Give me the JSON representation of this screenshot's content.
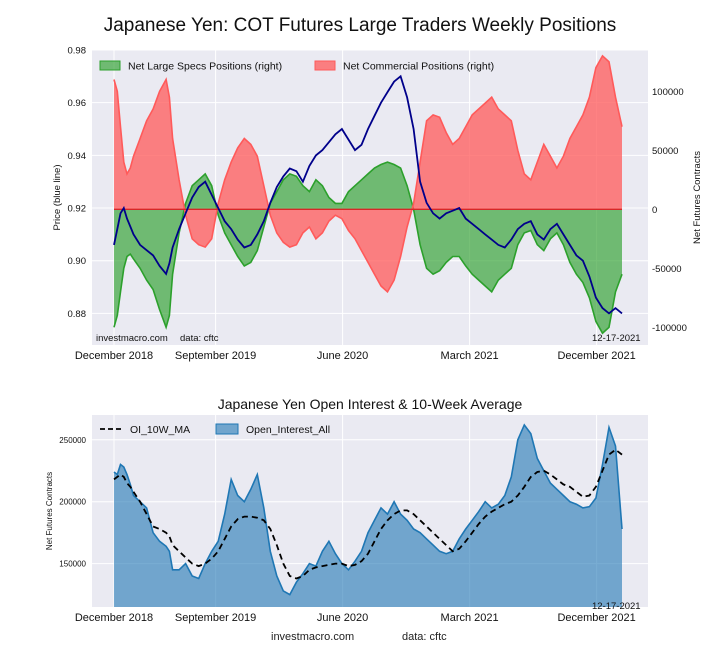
{
  "chart_data": [
    {
      "type": "area",
      "title": "Japanese Yen: COT Futures Large Traders Weekly Positions",
      "ylabel_left": "Price (blue line)",
      "ylabel_right": "Net Futures Contracts",
      "x_tick_labels": [
        "December 2018",
        "September 2019",
        "June 2020",
        "March 2021",
        "December 2021"
      ],
      "x_tick_positions": [
        0,
        0.2,
        0.45,
        0.7,
        0.95
      ],
      "ylim_left": [
        0.868,
        0.98
      ],
      "y_ticks_left": [
        0.88,
        0.9,
        0.92,
        0.94,
        0.96,
        0.98
      ],
      "y_tick_labels_left": [
        "0.88",
        "0.90",
        "0.92",
        "0.94",
        "0.96",
        "0.98"
      ],
      "ylim_right": [
        -115000,
        135000
      ],
      "y_ticks_right": [
        -100000,
        -50000,
        0,
        50000,
        100000
      ],
      "y_tick_labels_right": [
        "-100000",
        "-50000",
        "0",
        "50000",
        "100000"
      ],
      "grid": true,
      "legend_position": "top-left",
      "source_label": "investmacro.com",
      "data_label": "data: cftc",
      "date_label": "12-17-2021",
      "series": [
        {
          "name": "Net Large Specs Positions (right)",
          "kind": "area",
          "color": "#2ca02c",
          "x": [
            0,
            1,
            2,
            3,
            4,
            5,
            6,
            8,
            10,
            12,
            14,
            16,
            17,
            18,
            20,
            22,
            24,
            26,
            28,
            30,
            32,
            34,
            36,
            38,
            40,
            42,
            44,
            46,
            48,
            50,
            52,
            54,
            56,
            58,
            60,
            62,
            64,
            66,
            68,
            70,
            72,
            74,
            76,
            78,
            80,
            82,
            84,
            86,
            88,
            90,
            92,
            94,
            96,
            98,
            100,
            102,
            104,
            106,
            108,
            110,
            112,
            114,
            116,
            118,
            120,
            122,
            124,
            126,
            128,
            130,
            132,
            134,
            136,
            138,
            140,
            142,
            144,
            146,
            148,
            150,
            152,
            154,
            156
          ],
          "values": [
            -100000,
            -90000,
            -70000,
            -50000,
            -40000,
            -38000,
            -42000,
            -50000,
            -60000,
            -68000,
            -85000,
            -100000,
            -90000,
            -55000,
            -20000,
            5000,
            20000,
            25000,
            30000,
            20000,
            -5000,
            -20000,
            -30000,
            -40000,
            -48000,
            -45000,
            -35000,
            -15000,
            5000,
            15000,
            25000,
            30000,
            28000,
            20000,
            15000,
            25000,
            20000,
            10000,
            5000,
            5000,
            15000,
            20000,
            25000,
            30000,
            35000,
            38000,
            40000,
            38000,
            35000,
            20000,
            0,
            -30000,
            -50000,
            -55000,
            -52000,
            -45000,
            -40000,
            -40000,
            -48000,
            -55000,
            -60000,
            -65000,
            -70000,
            -60000,
            -55000,
            -50000,
            -30000,
            -20000,
            -18000,
            -30000,
            -35000,
            -25000,
            -20000,
            -30000,
            -45000,
            -55000,
            -62000,
            -75000,
            -95000,
            -105000,
            -100000,
            -70000,
            -55000
          ]
        },
        {
          "name": "Net Commercial Positions (right)",
          "kind": "area",
          "color": "#ff5a5a",
          "x": [
            0,
            1,
            2,
            3,
            4,
            5,
            6,
            8,
            10,
            12,
            14,
            16,
            17,
            18,
            20,
            22,
            24,
            26,
            28,
            30,
            32,
            34,
            36,
            38,
            40,
            42,
            44,
            46,
            48,
            50,
            52,
            54,
            56,
            58,
            60,
            62,
            64,
            66,
            68,
            70,
            72,
            74,
            76,
            78,
            80,
            82,
            84,
            86,
            88,
            90,
            92,
            94,
            96,
            98,
            100,
            102,
            104,
            106,
            108,
            110,
            112,
            114,
            116,
            118,
            120,
            122,
            124,
            126,
            128,
            130,
            132,
            134,
            136,
            138,
            140,
            142,
            144,
            146,
            148,
            150,
            152,
            154,
            156
          ],
          "values": [
            110000,
            100000,
            70000,
            40000,
            30000,
            35000,
            45000,
            60000,
            75000,
            85000,
            100000,
            110000,
            95000,
            60000,
            25000,
            -5000,
            -25000,
            -30000,
            -32000,
            -25000,
            5000,
            25000,
            40000,
            52000,
            60000,
            55000,
            45000,
            20000,
            -5000,
            -20000,
            -28000,
            -32000,
            -30000,
            -20000,
            -15000,
            -25000,
            -20000,
            -10000,
            -5000,
            -8000,
            -18000,
            -25000,
            -35000,
            -45000,
            -55000,
            -65000,
            -70000,
            -60000,
            -40000,
            -15000,
            5000,
            40000,
            75000,
            80000,
            78000,
            65000,
            55000,
            60000,
            70000,
            80000,
            85000,
            90000,
            95000,
            85000,
            80000,
            75000,
            50000,
            30000,
            25000,
            40000,
            55000,
            45000,
            35000,
            45000,
            60000,
            70000,
            80000,
            95000,
            120000,
            130000,
            125000,
            95000,
            70000
          ]
        },
        {
          "name": "Price",
          "kind": "line",
          "color": "#00008b",
          "x": [
            0,
            1,
            2,
            3,
            4,
            5,
            6,
            8,
            10,
            12,
            14,
            16,
            17,
            18,
            20,
            22,
            24,
            26,
            28,
            30,
            32,
            34,
            36,
            38,
            40,
            42,
            44,
            46,
            48,
            50,
            52,
            54,
            56,
            58,
            60,
            62,
            64,
            66,
            68,
            70,
            72,
            74,
            76,
            78,
            80,
            82,
            84,
            86,
            88,
            90,
            92,
            94,
            96,
            98,
            100,
            102,
            104,
            106,
            108,
            110,
            112,
            114,
            116,
            118,
            120,
            122,
            124,
            126,
            128,
            130,
            132,
            134,
            136,
            138,
            140,
            142,
            144,
            146,
            148,
            150,
            152,
            154,
            156
          ],
          "values": [
            0.906,
            0.912,
            0.918,
            0.92,
            0.916,
            0.913,
            0.91,
            0.906,
            0.904,
            0.902,
            0.898,
            0.895,
            0.899,
            0.905,
            0.912,
            0.918,
            0.924,
            0.928,
            0.93,
            0.925,
            0.92,
            0.915,
            0.912,
            0.908,
            0.905,
            0.906,
            0.91,
            0.915,
            0.922,
            0.928,
            0.932,
            0.935,
            0.934,
            0.93,
            0.936,
            0.94,
            0.942,
            0.945,
            0.948,
            0.95,
            0.946,
            0.942,
            0.944,
            0.95,
            0.955,
            0.96,
            0.964,
            0.968,
            0.97,
            0.962,
            0.95,
            0.93,
            0.922,
            0.918,
            0.916,
            0.918,
            0.919,
            0.92,
            0.916,
            0.914,
            0.912,
            0.91,
            0.908,
            0.906,
            0.905,
            0.908,
            0.912,
            0.914,
            0.915,
            0.91,
            0.908,
            0.912,
            0.914,
            0.91,
            0.906,
            0.902,
            0.9,
            0.894,
            0.886,
            0.882,
            0.88,
            0.882,
            0.88
          ]
        }
      ]
    },
    {
      "type": "area",
      "title": "Japanese Yen Open Interest & 10-Week Average",
      "ylabel": "Net Futures Contracts",
      "x_tick_labels": [
        "December 2018",
        "September 2019",
        "June 2020",
        "March 2021",
        "December 2021"
      ],
      "x_tick_positions": [
        0,
        0.2,
        0.45,
        0.7,
        0.95
      ],
      "ylim": [
        115000,
        270000
      ],
      "y_ticks": [
        150000,
        200000,
        250000
      ],
      "y_tick_labels": [
        "150000",
        "200000",
        "250000"
      ],
      "grid": true,
      "legend_position": "top-left",
      "source_label": "investmacro.com",
      "data_label": "data: cftc",
      "date_label": "12-17-2021",
      "series": [
        {
          "name": "Open_Interest_All",
          "kind": "area",
          "color": "#1f77b4",
          "x": [
            0,
            1,
            2,
            3,
            4,
            5,
            6,
            8,
            10,
            12,
            14,
            16,
            17,
            18,
            20,
            22,
            24,
            26,
            28,
            30,
            32,
            34,
            36,
            38,
            40,
            42,
            44,
            46,
            48,
            50,
            52,
            54,
            56,
            58,
            60,
            62,
            64,
            66,
            68,
            70,
            72,
            74,
            76,
            78,
            80,
            82,
            84,
            86,
            88,
            90,
            92,
            94,
            96,
            98,
            100,
            102,
            104,
            106,
            108,
            110,
            112,
            114,
            116,
            118,
            120,
            122,
            124,
            126,
            128,
            130,
            132,
            134,
            136,
            138,
            140,
            142,
            144,
            146,
            148,
            150,
            152,
            154,
            156
          ],
          "values": [
            224000,
            222000,
            230000,
            228000,
            222000,
            214000,
            205000,
            200000,
            195000,
            175000,
            168000,
            164000,
            160000,
            145000,
            145000,
            150000,
            140000,
            138000,
            150000,
            160000,
            168000,
            190000,
            218000,
            205000,
            200000,
            210000,
            222000,
            195000,
            160000,
            140000,
            128000,
            125000,
            135000,
            142000,
            150000,
            148000,
            160000,
            168000,
            158000,
            150000,
            145000,
            152000,
            160000,
            175000,
            185000,
            195000,
            190000,
            200000,
            190000,
            185000,
            178000,
            175000,
            170000,
            165000,
            160000,
            158000,
            160000,
            170000,
            178000,
            185000,
            192000,
            200000,
            195000,
            198000,
            205000,
            220000,
            250000,
            262000,
            255000,
            235000,
            225000,
            215000,
            210000,
            205000,
            200000,
            198000,
            195000,
            196000,
            203000,
            230000,
            260000,
            245000,
            178000
          ]
        },
        {
          "name": "OI_10W_MA",
          "kind": "line",
          "color": "#000000",
          "dashed": true,
          "x": [
            0,
            1,
            2,
            3,
            4,
            5,
            6,
            8,
            10,
            12,
            14,
            16,
            17,
            18,
            20,
            22,
            24,
            26,
            28,
            30,
            32,
            34,
            36,
            38,
            40,
            42,
            44,
            46,
            48,
            50,
            52,
            54,
            56,
            58,
            60,
            62,
            64,
            66,
            68,
            70,
            72,
            74,
            76,
            78,
            80,
            82,
            84,
            86,
            88,
            90,
            92,
            94,
            96,
            98,
            100,
            102,
            104,
            106,
            108,
            110,
            112,
            114,
            116,
            118,
            120,
            122,
            124,
            126,
            128,
            130,
            132,
            134,
            136,
            138,
            140,
            142,
            144,
            146,
            148,
            150,
            152,
            154,
            156
          ],
          "values": [
            218000,
            220000,
            222000,
            220000,
            215000,
            212000,
            208000,
            200000,
            190000,
            180000,
            178000,
            175000,
            172000,
            165000,
            160000,
            155000,
            150000,
            148000,
            150000,
            154000,
            160000,
            170000,
            180000,
            186000,
            188000,
            188000,
            187000,
            185000,
            178000,
            165000,
            150000,
            140000,
            138000,
            140000,
            145000,
            147000,
            148000,
            149000,
            150000,
            150000,
            148000,
            149000,
            152000,
            158000,
            168000,
            178000,
            185000,
            190000,
            193000,
            193000,
            190000,
            185000,
            180000,
            175000,
            170000,
            165000,
            160000,
            162000,
            168000,
            175000,
            182000,
            188000,
            192000,
            195000,
            198000,
            200000,
            205000,
            212000,
            220000,
            224000,
            225000,
            222000,
            218000,
            214000,
            212000,
            208000,
            204000,
            205000,
            212000,
            225000,
            238000,
            242000,
            238000
          ]
        }
      ]
    }
  ]
}
